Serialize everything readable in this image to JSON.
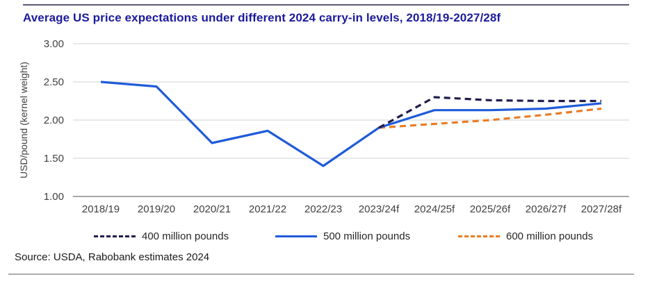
{
  "source": "Source: USDA, Rabobank estimates 2024",
  "chart_data": {
    "type": "line",
    "title": "Average US price expectations under different 2024 carry-in levels, 2018/19-2027/28f",
    "xlabel": "",
    "ylabel": "USD/pound (kernel weight)",
    "categories": [
      "2018/19",
      "2019/20",
      "2020/21",
      "2021/22",
      "2022/23",
      "2023/24f",
      "2024/25f",
      "2025/26f",
      "2026/27f",
      "2027/28f"
    ],
    "ylim": [
      1.0,
      3.0
    ],
    "yticks": [
      1.0,
      1.5,
      2.0,
      2.5,
      3.0
    ],
    "ytick_labels": [
      "1.00",
      "1.50",
      "2.00",
      "2.50",
      "3.00"
    ],
    "grid": "horizontal",
    "legend_position": "bottom",
    "colors": {
      "title_navy": "#1c1a9d",
      "gridline": "#d9d9d9",
      "axis_line": "#a6a6a6",
      "tick_text": "#3f3f3f"
    },
    "series": [
      {
        "name": "400 million pounds",
        "color": "#201d4d",
        "style": "dashed",
        "values": [
          null,
          null,
          null,
          null,
          null,
          1.9,
          2.3,
          2.26,
          2.25,
          2.25
        ]
      },
      {
        "name": "500 million pounds",
        "color": "#1f5bd9",
        "style": "solid",
        "values": [
          2.5,
          2.44,
          1.7,
          1.86,
          1.4,
          1.9,
          2.13,
          2.13,
          2.15,
          2.22
        ]
      },
      {
        "name": "600 million pounds",
        "color": "#e87d26",
        "style": "dashed",
        "values": [
          null,
          null,
          null,
          null,
          null,
          1.9,
          1.95,
          2.0,
          2.07,
          2.15
        ]
      }
    ]
  }
}
